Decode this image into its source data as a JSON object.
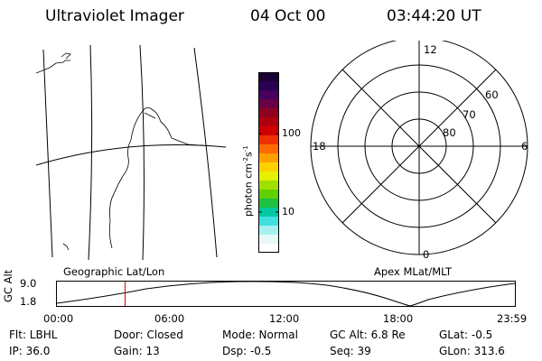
{
  "header": {
    "instrument": "Ultraviolet Imager",
    "date": "04 Oct 00",
    "time": "03:44:20 UT"
  },
  "colorbar": {
    "axis_label_main": "photon cm",
    "axis_label_exp1": "-2",
    "axis_label_mid": "s",
    "axis_label_exp2": "-1",
    "ticks": [
      "100",
      "10"
    ],
    "scale": "log",
    "colors_top_to_bottom": [
      "#1a0033",
      "#2a0050",
      "#450060",
      "#6a0045",
      "#8f0020",
      "#b00010",
      "#d00000",
      "#f03000",
      "#ff6a00",
      "#ffa000",
      "#ffd000",
      "#e6f000",
      "#a0e000",
      "#60d000",
      "#20c040",
      "#00c8a0",
      "#40e0e0",
      "#a8f0f0",
      "#e8f8f8",
      "#ffffff"
    ]
  },
  "polar_plot": {
    "mlt_labels": {
      "top": "12",
      "left": "18",
      "right": "6",
      "bottom": "0"
    },
    "lat_labels": [
      "60",
      "70",
      "80"
    ]
  },
  "timeline": {
    "left_label": "Geographic Lat/Lon",
    "right_label": "Apex MLat/MLT",
    "axis_label": "GC Alt",
    "y_ticks": [
      "9.0",
      "1.8"
    ],
    "x_ticks": [
      "00:00",
      "06:00",
      "12:00",
      "18:00",
      "23:59"
    ],
    "current_time_fraction": 0.1488,
    "marker_color": "#d00000"
  },
  "footer": {
    "row1": {
      "filter": "Flt: LBHL",
      "door": "Door: Closed",
      "mode": "Mode: Normal",
      "gc_alt": "GC Alt: 6.8 Re",
      "glat": "GLat:  -0.5"
    },
    "row2": {
      "ip": "IP: 36.0",
      "gain": "Gain: 13",
      "dsp": "Dsp:    -0.5",
      "seq": "Seq: 39",
      "glon": "GLon: 313.6"
    }
  }
}
